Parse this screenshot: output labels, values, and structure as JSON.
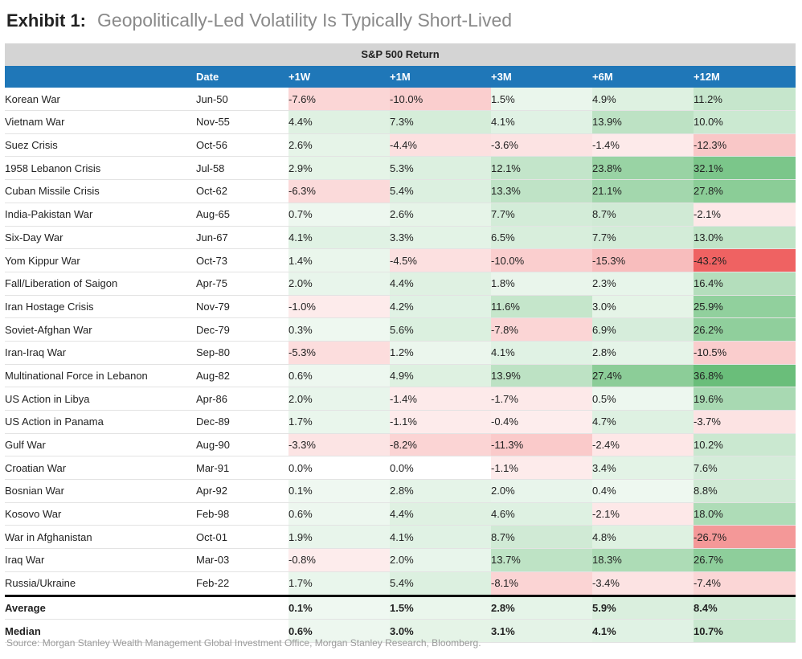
{
  "header": {
    "exhibit": "Exhibit 1:",
    "title": "Geopolitically-Led Volatility Is Typically Short-Lived"
  },
  "source": "Source: Morgan Stanley Wealth Management Global Investment Office, Morgan Stanley Research, Bloomberg.",
  "chart_data": {
    "type": "table",
    "super_header": "S&P 500 Return",
    "columns": [
      "",
      "Date",
      "+1W",
      "+1M",
      "+3M",
      "+6M",
      "+12M"
    ],
    "rows": [
      {
        "event": "Korean War",
        "date": "Jun-50",
        "values": [
          -7.6,
          -10.0,
          1.5,
          4.9,
          11.2
        ]
      },
      {
        "event": "Vietnam War",
        "date": "Nov-55",
        "values": [
          4.4,
          7.3,
          4.1,
          13.9,
          10.0
        ]
      },
      {
        "event": "Suez Crisis",
        "date": "Oct-56",
        "values": [
          2.6,
          -4.4,
          -3.6,
          -1.4,
          -12.3
        ]
      },
      {
        "event": "1958 Lebanon Crisis",
        "date": "Jul-58",
        "values": [
          2.9,
          5.3,
          12.1,
          23.8,
          32.1
        ]
      },
      {
        "event": "Cuban Missile Crisis",
        "date": "Oct-62",
        "values": [
          -6.3,
          5.4,
          13.3,
          21.1,
          27.8
        ]
      },
      {
        "event": "India-Pakistan War",
        "date": "Aug-65",
        "values": [
          0.7,
          2.6,
          7.7,
          8.7,
          -2.1
        ]
      },
      {
        "event": "Six-Day War",
        "date": "Jun-67",
        "values": [
          4.1,
          3.3,
          6.5,
          7.7,
          13.0
        ]
      },
      {
        "event": "Yom Kippur War",
        "date": "Oct-73",
        "values": [
          1.4,
          -4.5,
          -10.0,
          -15.3,
          -43.2
        ]
      },
      {
        "event": "Fall/Liberation of Saigon",
        "date": "Apr-75",
        "values": [
          2.0,
          4.4,
          1.8,
          2.3,
          16.4
        ]
      },
      {
        "event": "Iran Hostage Crisis",
        "date": "Nov-79",
        "values": [
          -1.0,
          4.2,
          11.6,
          3.0,
          25.9
        ]
      },
      {
        "event": "Soviet-Afghan War",
        "date": "Dec-79",
        "values": [
          0.3,
          5.6,
          -7.8,
          6.9,
          26.2
        ]
      },
      {
        "event": "Iran-Iraq War",
        "date": "Sep-80",
        "values": [
          -5.3,
          1.2,
          4.1,
          2.8,
          -10.5
        ]
      },
      {
        "event": "Multinational Force in Lebanon",
        "date": "Aug-82",
        "values": [
          0.6,
          4.9,
          13.9,
          27.4,
          36.8
        ]
      },
      {
        "event": "US Action in Libya",
        "date": "Apr-86",
        "values": [
          2.0,
          -1.4,
          -1.7,
          0.5,
          19.6
        ]
      },
      {
        "event": "US Action in Panama",
        "date": "Dec-89",
        "values": [
          1.7,
          -1.1,
          -0.4,
          4.7,
          -3.7
        ]
      },
      {
        "event": "Gulf War",
        "date": "Aug-90",
        "values": [
          -3.3,
          -8.2,
          -11.3,
          -2.4,
          10.2
        ]
      },
      {
        "event": "Croatian War",
        "date": "Mar-91",
        "values": [
          0.0,
          0.0,
          -1.1,
          3.4,
          7.6
        ]
      },
      {
        "event": "Bosnian War",
        "date": "Apr-92",
        "values": [
          0.1,
          2.8,
          2.0,
          0.4,
          8.8
        ]
      },
      {
        "event": "Kosovo War",
        "date": "Feb-98",
        "values": [
          0.6,
          4.4,
          4.6,
          -2.1,
          18.0
        ]
      },
      {
        "event": "War in Afghanistan",
        "date": "Oct-01",
        "values": [
          1.9,
          4.1,
          8.7,
          4.8,
          -26.7
        ]
      },
      {
        "event": "Iraq War",
        "date": "Mar-03",
        "values": [
          -0.8,
          2.0,
          13.7,
          18.3,
          26.7
        ]
      },
      {
        "event": "Russia/Ukraine",
        "date": "Feb-22",
        "values": [
          1.7,
          5.4,
          -8.1,
          -3.4,
          -7.4
        ]
      }
    ],
    "summary": [
      {
        "label": "Average",
        "values": [
          0.1,
          1.5,
          2.8,
          5.9,
          8.4
        ]
      },
      {
        "label": "Median",
        "values": [
          0.6,
          3.0,
          3.1,
          4.1,
          10.7
        ]
      }
    ],
    "value_format": "percent_one_decimal",
    "colors": {
      "header_blue": "#1f77b8",
      "super_header_gray": "#d4d4d4",
      "positive_scale": "#62bb73",
      "negative_scale": "#ee5a5a"
    }
  }
}
